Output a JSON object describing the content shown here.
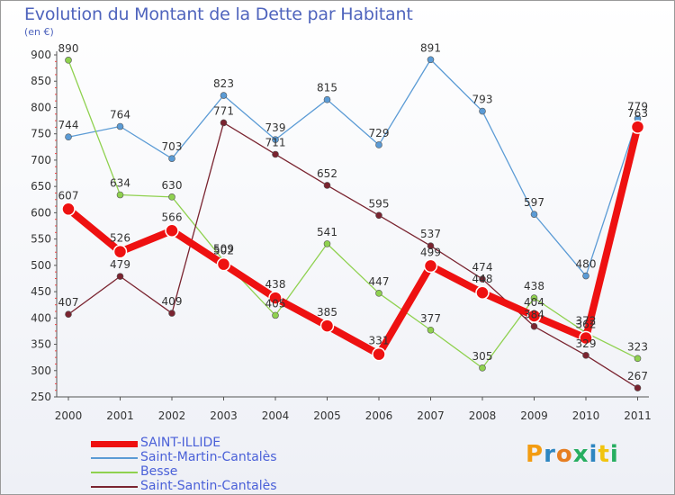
{
  "chart_data": {
    "type": "line",
    "title": "Evolution du Montant de la Dette par Habitant",
    "unit_label": "(en €)",
    "x": [
      "2000",
      "2001",
      "2002",
      "2003",
      "2004",
      "2005",
      "2006",
      "2007",
      "2008",
      "2009",
      "2010",
      "2011"
    ],
    "y_ticks": [
      250,
      300,
      350,
      400,
      450,
      500,
      550,
      600,
      650,
      700,
      750,
      800,
      850,
      900
    ],
    "ylim": [
      250,
      900
    ],
    "grid": false,
    "legend_position": "bottom-left",
    "series": [
      {
        "name": "Saint-Martin-Cantalès",
        "color": "#5b9bd5",
        "values": [
          744,
          764,
          703,
          823,
          739,
          815,
          729,
          891,
          793,
          597,
          480,
          779
        ]
      },
      {
        "name": "Besse",
        "color": "#8fd14f",
        "values": [
          890,
          634,
          630,
          509,
          405,
          541,
          447,
          377,
          305,
          438,
          372,
          323
        ]
      },
      {
        "name": "Saint-Santin-Cantalès",
        "color": "#7a2430",
        "values": [
          407,
          479,
          409,
          771,
          711,
          652,
          595,
          537,
          474,
          384,
          329,
          267
        ]
      },
      {
        "name": "SAINT-ILLIDE",
        "color": "#ee1111",
        "values": [
          607,
          526,
          566,
          502,
          438,
          385,
          331,
          499,
          448,
          404,
          362,
          763
        ]
      }
    ]
  },
  "legend": {
    "items": [
      {
        "label": "SAINT-ILLIDE",
        "color": "#ee1111"
      },
      {
        "label": "Saint-Martin-Cantalès",
        "color": "#5b9bd5"
      },
      {
        "label": "Besse",
        "color": "#8fd14f"
      },
      {
        "label": "Saint-Santin-Cantalès",
        "color": "#7a2430"
      }
    ]
  },
  "brand": {
    "text": "Proxiti",
    "letter_colors": [
      "#f39c12",
      "#2e86c1",
      "#e67e22",
      "#27ae60",
      "#2e86c1",
      "#f1c40f",
      "#27ae60"
    ]
  }
}
